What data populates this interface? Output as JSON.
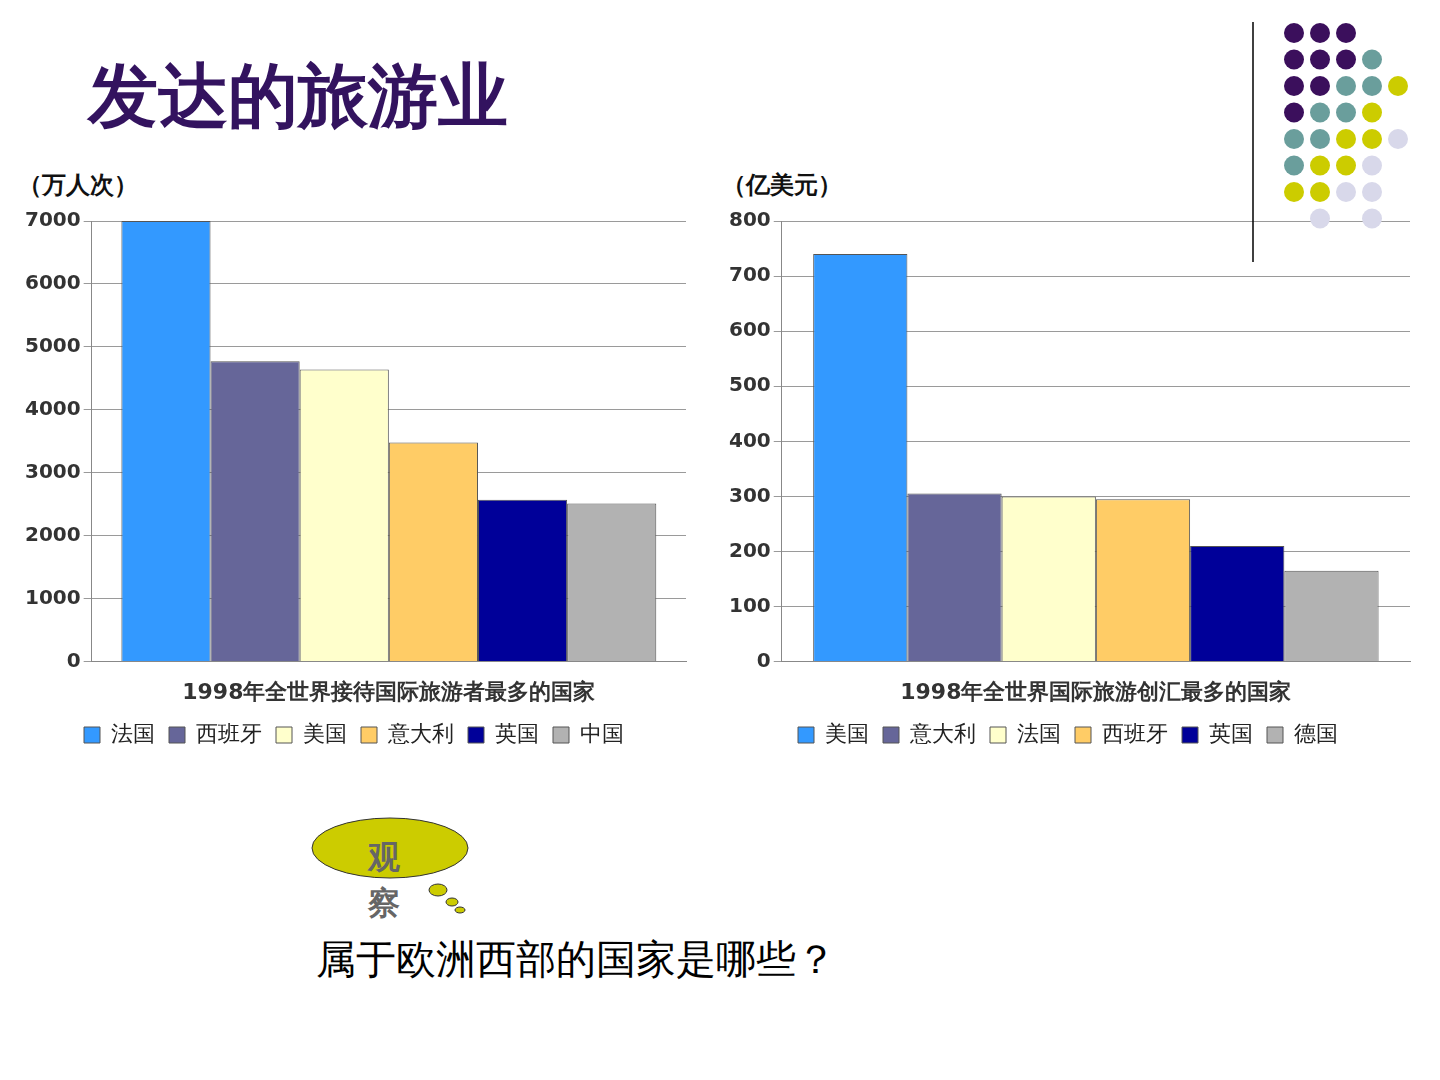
{
  "title": "发达的旅游业",
  "chart_data": [
    {
      "type": "bar",
      "y_label": "（万人次）",
      "x_label": "1998年全世界接待国际旅游者最多的国家",
      "categories": [
        null
      ],
      "series": [
        {
          "name": "法国",
          "color": "#3399ff",
          "values": [
            7000
          ]
        },
        {
          "name": "西班牙",
          "color": "#666699",
          "values": [
            4770
          ]
        },
        {
          "name": "美国",
          "color": "#ffffcc",
          "values": [
            4640
          ]
        },
        {
          "name": "意大利",
          "color": "#ffcc66",
          "values": [
            3480
          ]
        },
        {
          "name": "英国",
          "color": "#000099",
          "values": [
            2570
          ]
        },
        {
          "name": "中国",
          "color": "#b2b2b2",
          "values": [
            2510
          ]
        }
      ],
      "ylim": [
        0,
        7000
      ],
      "yticks": [
        0,
        1000,
        2000,
        3000,
        4000,
        5000,
        6000,
        7000
      ],
      "grid": true,
      "legend": "bottom"
    },
    {
      "type": "bar",
      "y_label": "（亿美元）",
      "x_label": "1998年全世界国际旅游创汇最多的国家",
      "categories": [
        null
      ],
      "series": [
        {
          "name": "美国",
          "color": "#3399ff",
          "values": [
            740
          ]
        },
        {
          "name": "意大利",
          "color": "#666699",
          "values": [
            305
          ]
        },
        {
          "name": "法国",
          "color": "#ffffcc",
          "values": [
            300
          ]
        },
        {
          "name": "西班牙",
          "color": "#ffcc66",
          "values": [
            295
          ]
        },
        {
          "name": "英国",
          "color": "#000099",
          "values": [
            210
          ]
        },
        {
          "name": "德国",
          "color": "#b2b2b2",
          "values": [
            165
          ]
        }
      ],
      "ylim": [
        0,
        800
      ],
      "yticks": [
        0,
        100,
        200,
        300,
        400,
        500,
        600,
        700,
        800
      ],
      "grid": true,
      "legend": "bottom"
    }
  ],
  "bubble": "观察",
  "question": "属于欧洲西部的国家是哪些？"
}
